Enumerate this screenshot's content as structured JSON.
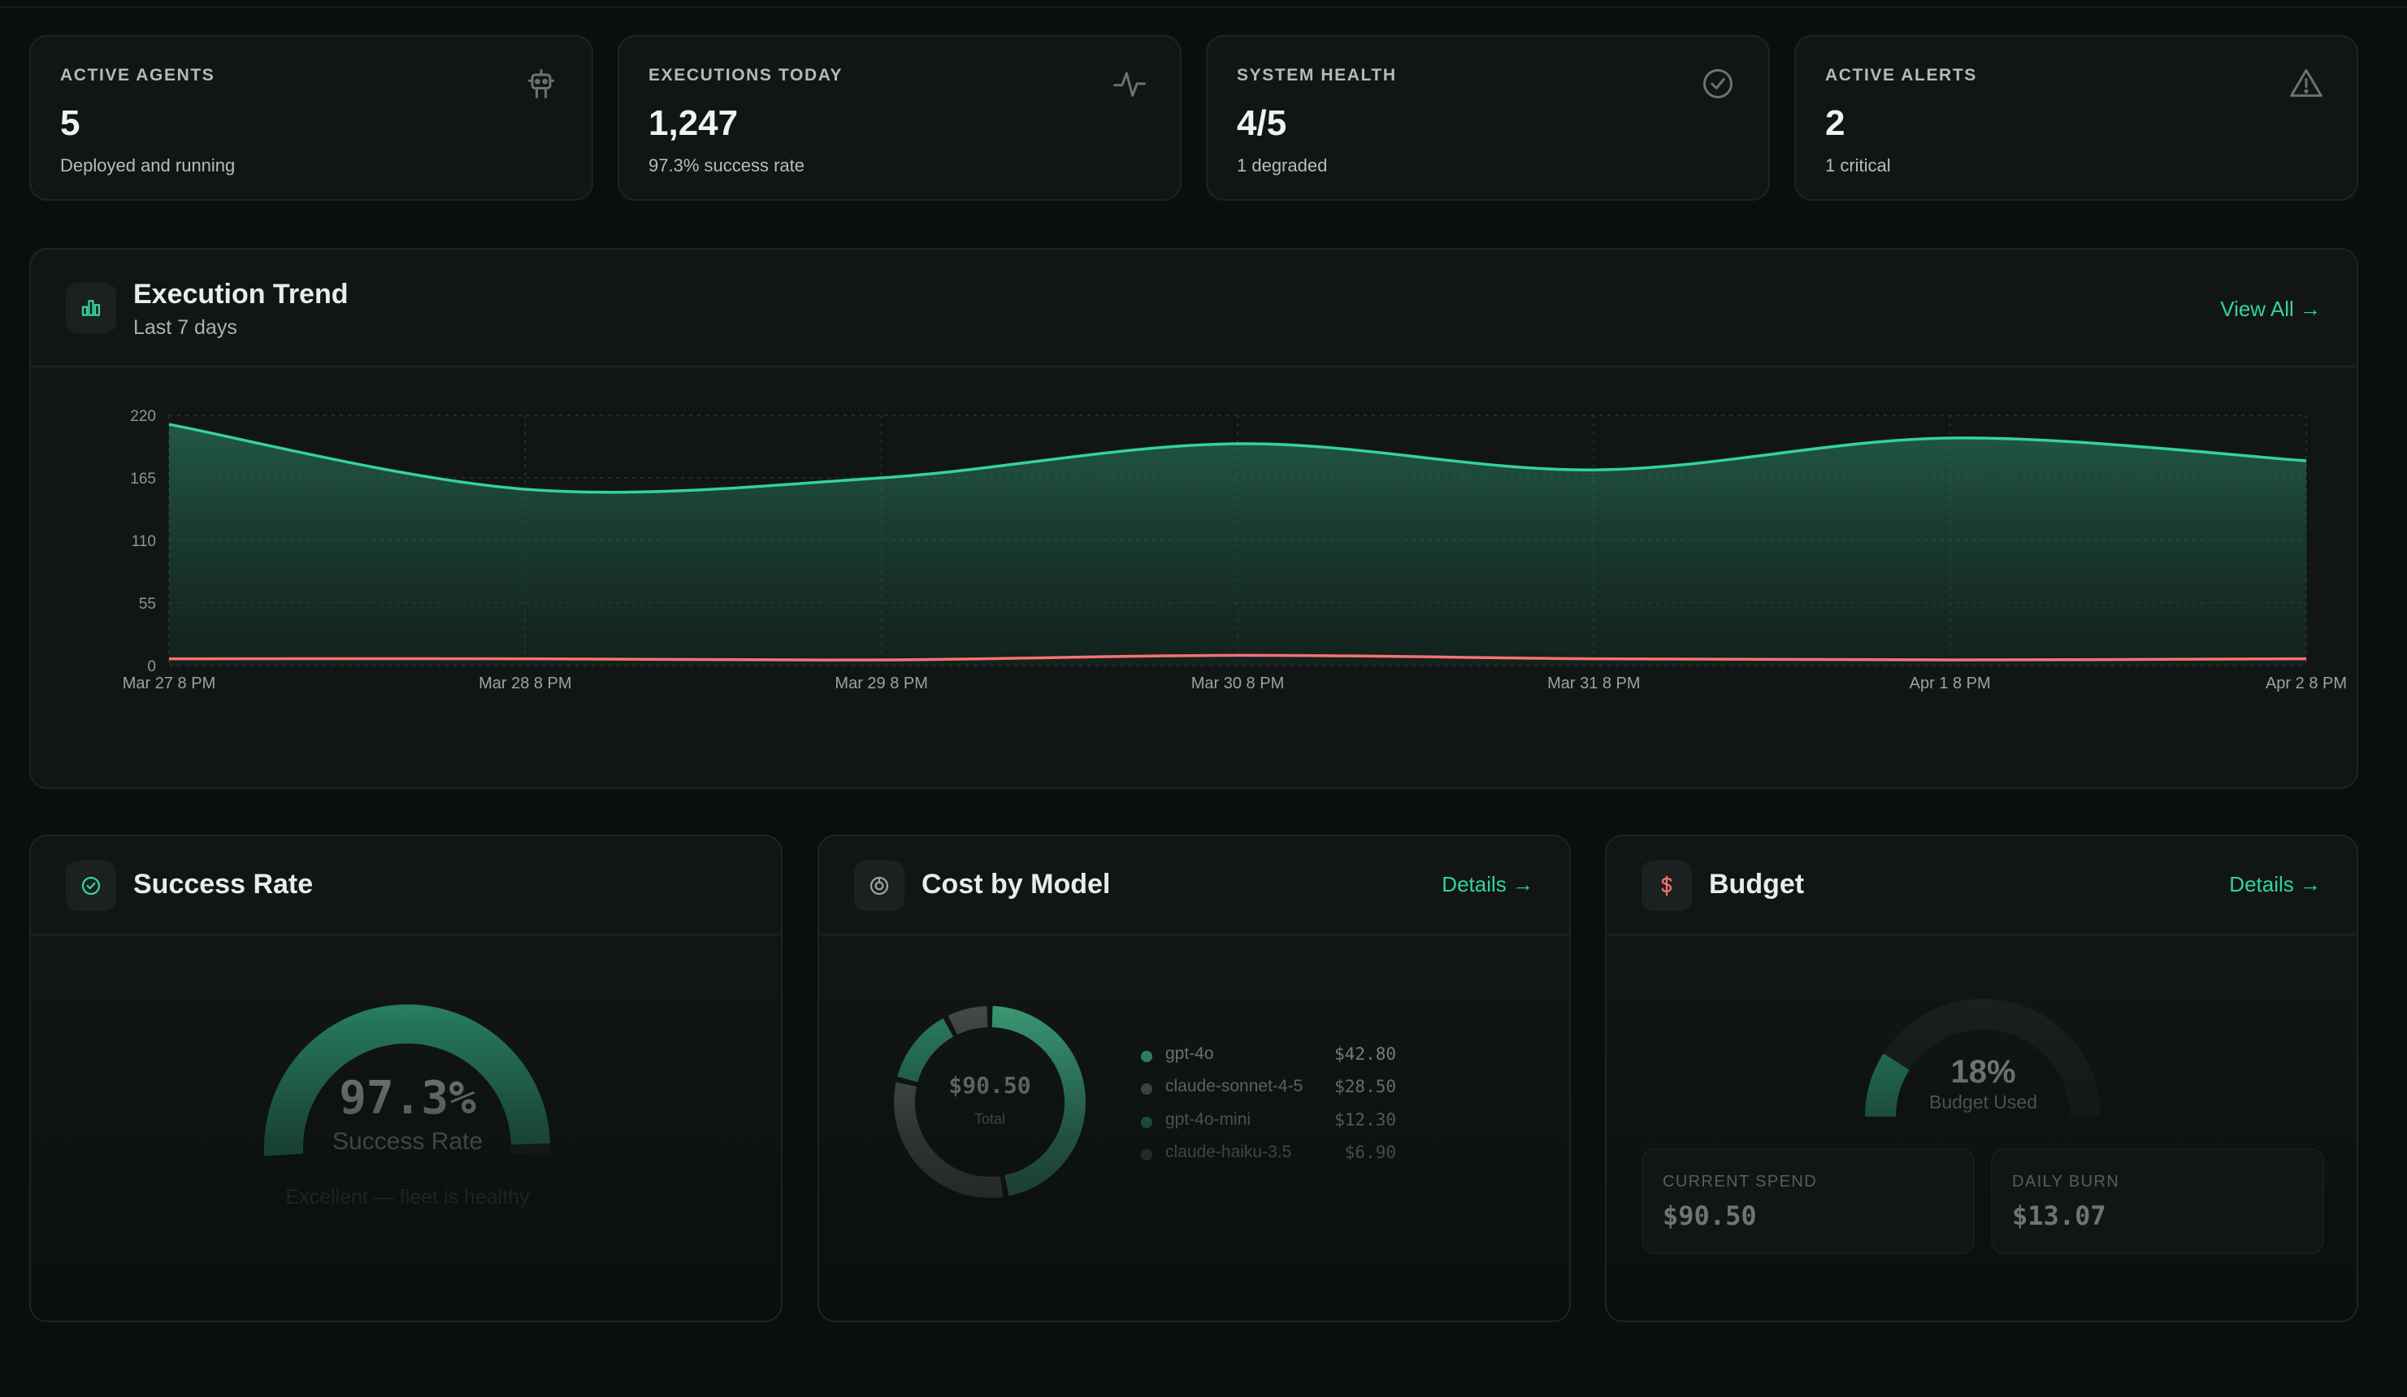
{
  "stats": [
    {
      "label": "ACTIVE AGENTS",
      "value": "5",
      "sub": "Deployed and running",
      "icon": "robot-icon"
    },
    {
      "label": "EXECUTIONS TODAY",
      "value": "1,247",
      "sub": "97.3% success rate",
      "icon": "activity-icon"
    },
    {
      "label": "SYSTEM HEALTH",
      "value": "4/5",
      "sub": "1 degraded",
      "icon": "check-circle-icon"
    },
    {
      "label": "ACTIVE ALERTS",
      "value": "2",
      "sub": "1 critical",
      "icon": "alert-triangle-icon"
    }
  ],
  "trend": {
    "title": "Execution Trend",
    "subtitle": "Last 7 days",
    "link": "View All →",
    "icon": "bar-chart-icon"
  },
  "chart_data": {
    "type": "area",
    "title": "Execution Trend",
    "x": [
      "Mar 27 8 PM",
      "Mar 28 8 PM",
      "Mar 29 8 PM",
      "Mar 30 8 PM",
      "Mar 31 8 PM",
      "Apr 1 8 PM",
      "Apr 2 8 PM"
    ],
    "y_ticks": [
      0,
      55,
      110,
      165,
      220
    ],
    "ylim": [
      0,
      220
    ],
    "grid": true,
    "series": [
      {
        "values": [
          212,
          155,
          165,
          195,
          172,
          200,
          180
        ],
        "color": "#34d399"
      },
      {
        "values": [
          6,
          6,
          5,
          9,
          6,
          5,
          6
        ],
        "color": "#f87171"
      }
    ]
  },
  "success": {
    "title": "Success Rate",
    "icon": "check-circle-icon",
    "rate": 97.3,
    "value": "97.3%",
    "label": "Success Rate",
    "note": "Excellent — fleet is healthy"
  },
  "cost": {
    "title": "Cost by Model",
    "icon": "pie-chart-icon",
    "link": "Details →",
    "total": "$90.50",
    "total_label": "Total",
    "models": [
      {
        "name": "gpt-4o",
        "value": "$42.80",
        "amount": 42.8,
        "color": "#3ea67f"
      },
      {
        "name": "claude-sonnet-4-5",
        "value": "$28.50",
        "amount": 28.5,
        "color": "#5b6160"
      },
      {
        "name": "gpt-4o-mini",
        "value": "$12.30",
        "amount": 12.3,
        "color": "#2f8a68"
      },
      {
        "name": "claude-haiku-3.5",
        "value": "$6.90",
        "amount": 6.9,
        "color": "#4a504f"
      }
    ]
  },
  "budget": {
    "title": "Budget",
    "icon": "dollar-icon",
    "link": "Details →",
    "percent_value": 18,
    "percent": "18%",
    "label": "Budget Used",
    "current_label": "CURRENT SPEND",
    "current_value": "$90.50",
    "daily_label": "DAILY BURN",
    "daily_value": "$13.07"
  }
}
